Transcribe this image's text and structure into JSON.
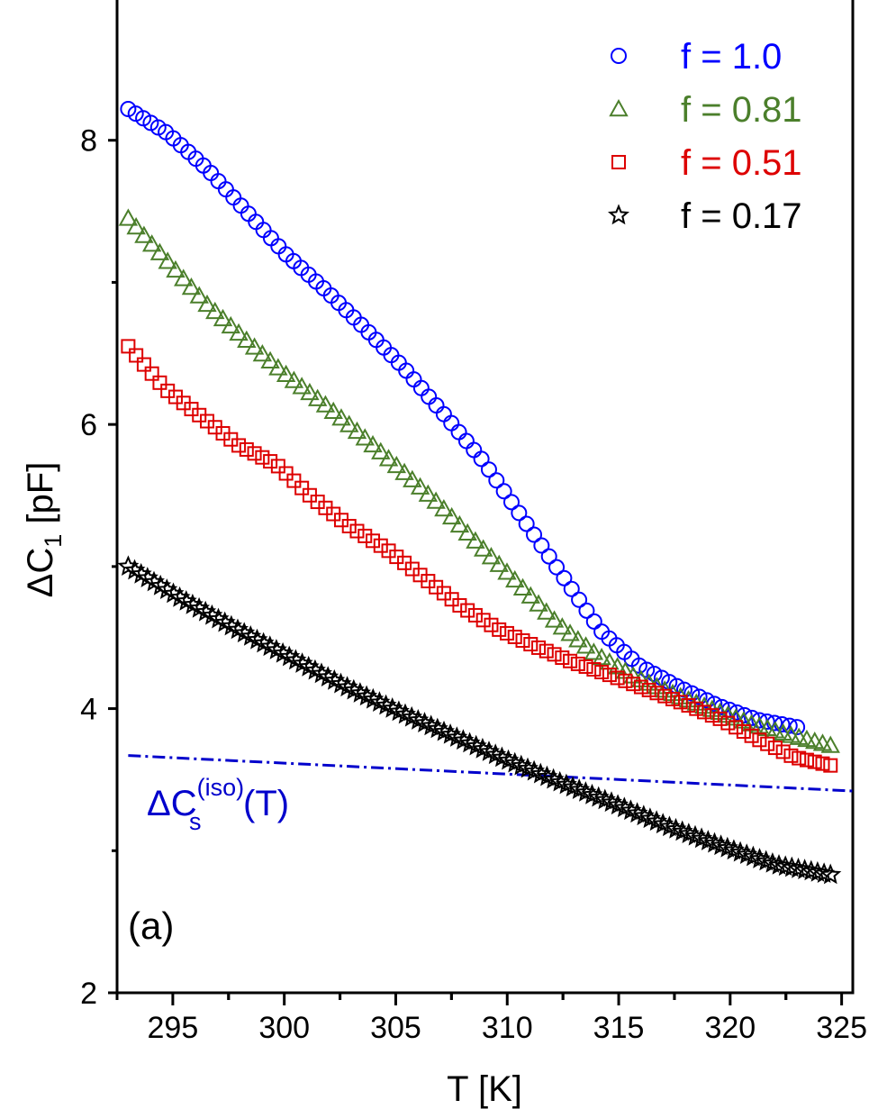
{
  "chart_data": {
    "type": "scatter",
    "title": "",
    "panel_label": "(a)",
    "xlabel": "T [K]",
    "ylabel": {
      "main": "ΔC",
      "sub": "1",
      "unit": " [pF]"
    },
    "xlim": [
      292.5,
      325.5
    ],
    "ylim": [
      2,
      9.0
    ],
    "xticks": [
      295,
      300,
      305,
      310,
      315,
      320,
      325
    ],
    "yticks": [
      2,
      4,
      6,
      8
    ],
    "legend_position": "top-right",
    "series": [
      {
        "name": "f = 1.0",
        "marker": "circle",
        "color": "#0000ff",
        "t_start": 293.0,
        "t_end": 323.0,
        "n": 90,
        "v": [
          8.22,
          8.05,
          7.8,
          7.5,
          7.2,
          6.95,
          6.68,
          6.4,
          6.08,
          5.75,
          5.35,
          4.95,
          4.55,
          4.3,
          4.15,
          4.02,
          3.92,
          3.87
        ]
      },
      {
        "name": "f = 0.81",
        "marker": "triangle",
        "color": "#4b7f2b",
        "t_start": 293.0,
        "t_end": 324.5,
        "n": 90,
        "v": [
          7.45,
          7.15,
          6.85,
          6.6,
          6.36,
          6.15,
          5.92,
          5.68,
          5.43,
          5.15,
          4.88,
          4.6,
          4.38,
          4.22,
          4.1,
          3.99,
          3.89,
          3.81,
          3.74
        ]
      },
      {
        "name": "f = 0.51",
        "marker": "square",
        "color": "#dd0000",
        "t_start": 293.0,
        "t_end": 324.5,
        "n": 90,
        "v": [
          6.55,
          6.25,
          6.05,
          5.85,
          5.72,
          5.48,
          5.28,
          5.12,
          4.92,
          4.72,
          4.56,
          4.44,
          4.33,
          4.24,
          4.14,
          4.04,
          3.93,
          3.79,
          3.66,
          3.6
        ]
      },
      {
        "name": "f = 0.17",
        "marker": "star",
        "color": "#000000",
        "t_start": 293.0,
        "t_end": 324.5,
        "n": 110,
        "v": [
          5.0,
          4.77,
          4.56,
          4.36,
          4.16,
          3.98,
          3.81,
          3.64,
          3.48,
          3.33,
          3.17,
          3.03,
          2.9,
          2.83
        ]
      }
    ],
    "reference_curve": {
      "label_main": "ΔC",
      "label_sup": "(iso)",
      "label_sub": "s",
      "label_tail": "(T)",
      "style": "dash-dot",
      "color": "#0000cc",
      "x": [
        293,
        325.5
      ],
      "y": [
        3.67,
        3.42
      ]
    }
  }
}
